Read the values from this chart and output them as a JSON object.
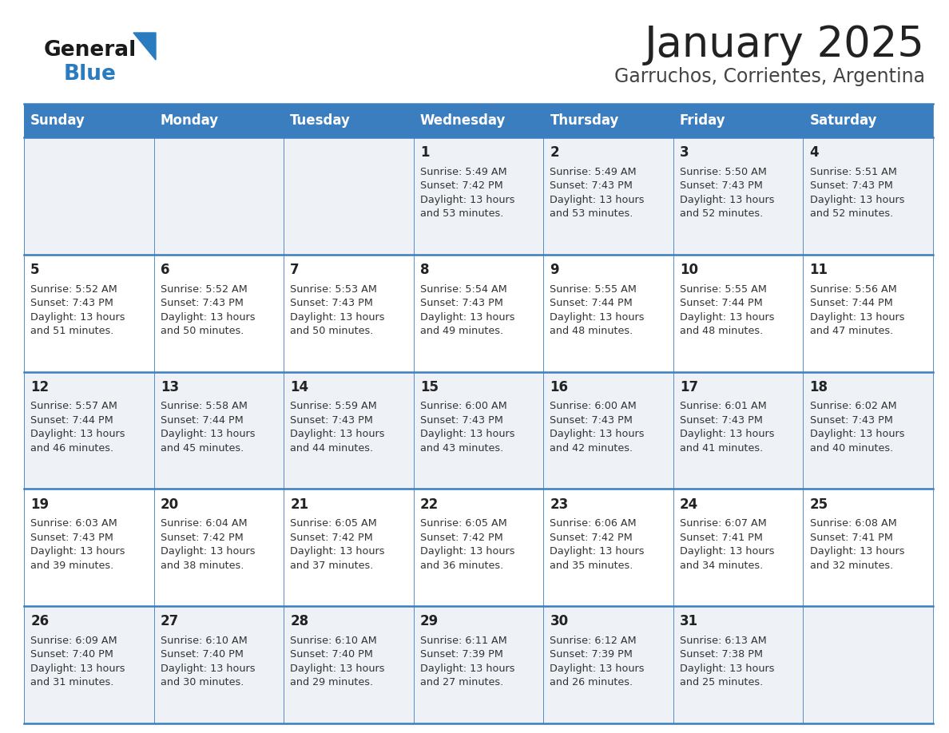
{
  "title": "January 2025",
  "subtitle": "Garruchos, Corrientes, Argentina",
  "days_of_week": [
    "Sunday",
    "Monday",
    "Tuesday",
    "Wednesday",
    "Thursday",
    "Friday",
    "Saturday"
  ],
  "header_bg": "#3a7ebf",
  "header_text": "#ffffff",
  "row_bg_even": "#eef2f7",
  "row_bg_odd": "#ffffff",
  "cell_border_color": "#3a7ebf",
  "day_num_color": "#222222",
  "info_color": "#333333",
  "title_color": "#222222",
  "subtitle_color": "#444444",
  "calendar_data": [
    [
      {
        "day": "",
        "info": ""
      },
      {
        "day": "",
        "info": ""
      },
      {
        "day": "",
        "info": ""
      },
      {
        "day": "1",
        "info": "Sunrise: 5:49 AM\nSunset: 7:42 PM\nDaylight: 13 hours\nand 53 minutes."
      },
      {
        "day": "2",
        "info": "Sunrise: 5:49 AM\nSunset: 7:43 PM\nDaylight: 13 hours\nand 53 minutes."
      },
      {
        "day": "3",
        "info": "Sunrise: 5:50 AM\nSunset: 7:43 PM\nDaylight: 13 hours\nand 52 minutes."
      },
      {
        "day": "4",
        "info": "Sunrise: 5:51 AM\nSunset: 7:43 PM\nDaylight: 13 hours\nand 52 minutes."
      }
    ],
    [
      {
        "day": "5",
        "info": "Sunrise: 5:52 AM\nSunset: 7:43 PM\nDaylight: 13 hours\nand 51 minutes."
      },
      {
        "day": "6",
        "info": "Sunrise: 5:52 AM\nSunset: 7:43 PM\nDaylight: 13 hours\nand 50 minutes."
      },
      {
        "day": "7",
        "info": "Sunrise: 5:53 AM\nSunset: 7:43 PM\nDaylight: 13 hours\nand 50 minutes."
      },
      {
        "day": "8",
        "info": "Sunrise: 5:54 AM\nSunset: 7:43 PM\nDaylight: 13 hours\nand 49 minutes."
      },
      {
        "day": "9",
        "info": "Sunrise: 5:55 AM\nSunset: 7:44 PM\nDaylight: 13 hours\nand 48 minutes."
      },
      {
        "day": "10",
        "info": "Sunrise: 5:55 AM\nSunset: 7:44 PM\nDaylight: 13 hours\nand 48 minutes."
      },
      {
        "day": "11",
        "info": "Sunrise: 5:56 AM\nSunset: 7:44 PM\nDaylight: 13 hours\nand 47 minutes."
      }
    ],
    [
      {
        "day": "12",
        "info": "Sunrise: 5:57 AM\nSunset: 7:44 PM\nDaylight: 13 hours\nand 46 minutes."
      },
      {
        "day": "13",
        "info": "Sunrise: 5:58 AM\nSunset: 7:44 PM\nDaylight: 13 hours\nand 45 minutes."
      },
      {
        "day": "14",
        "info": "Sunrise: 5:59 AM\nSunset: 7:43 PM\nDaylight: 13 hours\nand 44 minutes."
      },
      {
        "day": "15",
        "info": "Sunrise: 6:00 AM\nSunset: 7:43 PM\nDaylight: 13 hours\nand 43 minutes."
      },
      {
        "day": "16",
        "info": "Sunrise: 6:00 AM\nSunset: 7:43 PM\nDaylight: 13 hours\nand 42 minutes."
      },
      {
        "day": "17",
        "info": "Sunrise: 6:01 AM\nSunset: 7:43 PM\nDaylight: 13 hours\nand 41 minutes."
      },
      {
        "day": "18",
        "info": "Sunrise: 6:02 AM\nSunset: 7:43 PM\nDaylight: 13 hours\nand 40 minutes."
      }
    ],
    [
      {
        "day": "19",
        "info": "Sunrise: 6:03 AM\nSunset: 7:43 PM\nDaylight: 13 hours\nand 39 minutes."
      },
      {
        "day": "20",
        "info": "Sunrise: 6:04 AM\nSunset: 7:42 PM\nDaylight: 13 hours\nand 38 minutes."
      },
      {
        "day": "21",
        "info": "Sunrise: 6:05 AM\nSunset: 7:42 PM\nDaylight: 13 hours\nand 37 minutes."
      },
      {
        "day": "22",
        "info": "Sunrise: 6:05 AM\nSunset: 7:42 PM\nDaylight: 13 hours\nand 36 minutes."
      },
      {
        "day": "23",
        "info": "Sunrise: 6:06 AM\nSunset: 7:42 PM\nDaylight: 13 hours\nand 35 minutes."
      },
      {
        "day": "24",
        "info": "Sunrise: 6:07 AM\nSunset: 7:41 PM\nDaylight: 13 hours\nand 34 minutes."
      },
      {
        "day": "25",
        "info": "Sunrise: 6:08 AM\nSunset: 7:41 PM\nDaylight: 13 hours\nand 32 minutes."
      }
    ],
    [
      {
        "day": "26",
        "info": "Sunrise: 6:09 AM\nSunset: 7:40 PM\nDaylight: 13 hours\nand 31 minutes."
      },
      {
        "day": "27",
        "info": "Sunrise: 6:10 AM\nSunset: 7:40 PM\nDaylight: 13 hours\nand 30 minutes."
      },
      {
        "day": "28",
        "info": "Sunrise: 6:10 AM\nSunset: 7:40 PM\nDaylight: 13 hours\nand 29 minutes."
      },
      {
        "day": "29",
        "info": "Sunrise: 6:11 AM\nSunset: 7:39 PM\nDaylight: 13 hours\nand 27 minutes."
      },
      {
        "day": "30",
        "info": "Sunrise: 6:12 AM\nSunset: 7:39 PM\nDaylight: 13 hours\nand 26 minutes."
      },
      {
        "day": "31",
        "info": "Sunrise: 6:13 AM\nSunset: 7:38 PM\nDaylight: 13 hours\nand 25 minutes."
      },
      {
        "day": "",
        "info": ""
      }
    ]
  ],
  "title_fontsize": 38,
  "subtitle_fontsize": 17,
  "header_fontsize": 12,
  "day_num_fontsize": 12,
  "info_fontsize": 9.2,
  "logo_general_fontsize": 19,
  "logo_blue_fontsize": 19
}
